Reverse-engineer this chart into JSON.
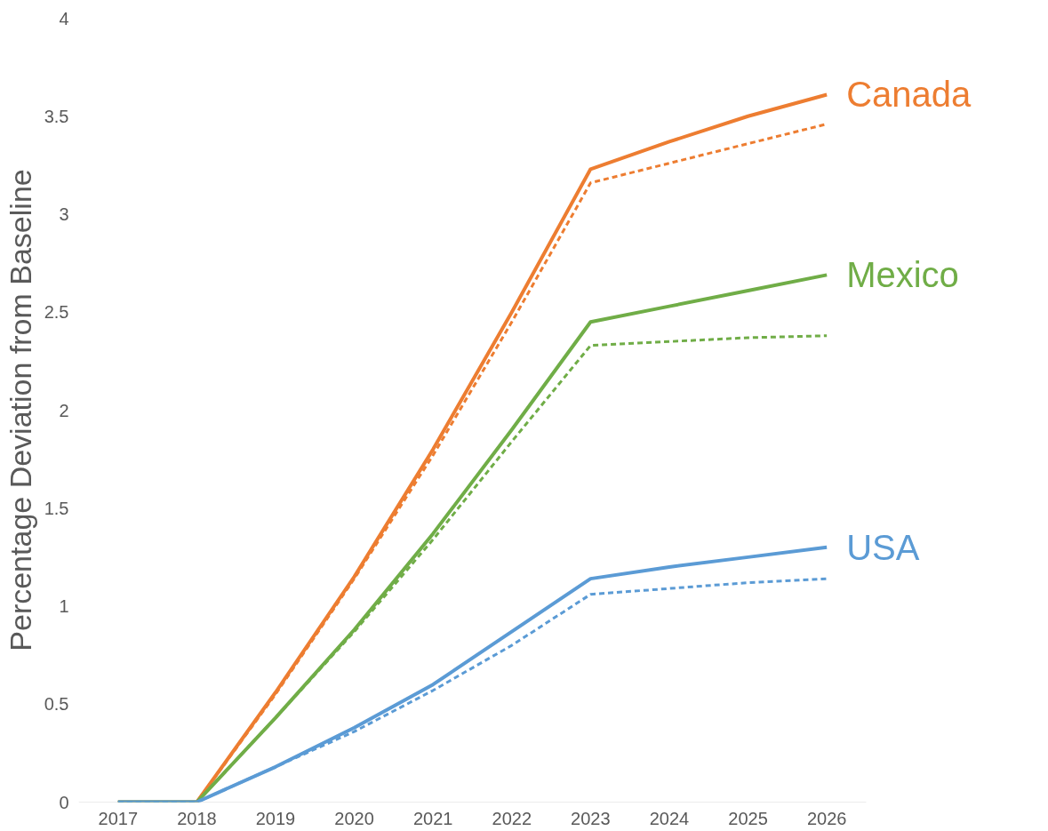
{
  "chart_data": {
    "type": "line",
    "ylabel": "Percentage Deviation from Baseline",
    "categories": [
      "2017",
      "2018",
      "2019",
      "2020",
      "2021",
      "2022",
      "2023",
      "2024",
      "2025",
      "2026"
    ],
    "ylim": [
      0,
      4
    ],
    "yticks": [
      0,
      0.5,
      1,
      1.5,
      2,
      2.5,
      3,
      3.5,
      4
    ],
    "grid": false,
    "marker": "none",
    "series": [
      {
        "name": "Canada",
        "color": "#ed7d31",
        "line_style": "solid",
        "values": [
          0,
          0,
          0.56,
          1.15,
          1.8,
          2.5,
          3.23,
          3.37,
          3.5,
          3.61
        ]
      },
      {
        "color": "#ed7d31",
        "line_style": "dashed",
        "values": [
          0,
          0,
          0.55,
          1.14,
          1.77,
          2.45,
          3.16,
          3.26,
          3.36,
          3.46
        ]
      },
      {
        "name": "Mexico",
        "color": "#70ad47",
        "line_style": "solid",
        "values": [
          0,
          0,
          0.43,
          0.88,
          1.37,
          1.9,
          2.45,
          2.53,
          2.61,
          2.69
        ]
      },
      {
        "color": "#70ad47",
        "line_style": "dashed",
        "values": [
          0,
          0,
          0.43,
          0.87,
          1.34,
          1.84,
          2.33,
          2.35,
          2.37,
          2.38
        ]
      },
      {
        "name": "USA",
        "color": "#5b9bd5",
        "line_style": "solid",
        "values": [
          0,
          0,
          0.18,
          0.38,
          0.6,
          0.87,
          1.14,
          1.2,
          1.25,
          1.3
        ]
      },
      {
        "color": "#5b9bd5",
        "line_style": "dashed",
        "values": [
          0,
          0,
          0.18,
          0.36,
          0.57,
          0.8,
          1.06,
          1.09,
          1.12,
          1.14
        ]
      }
    ]
  }
}
